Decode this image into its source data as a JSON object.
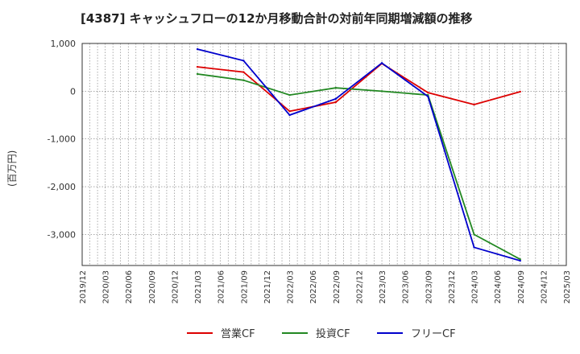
{
  "chart_data": {
    "type": "line",
    "title": "[4387]  キャッシュフローの12か月移動合計の対前年同期増減額の推移",
    "ylabel": "(百万円)",
    "xlabel": "",
    "ylim": [
      -3650,
      1000
    ],
    "yticks": [
      1000,
      0,
      -1000,
      -2000,
      -3000
    ],
    "ytick_labels": [
      "1,000",
      "0",
      "-1,000",
      "-2,000",
      "-3,000"
    ],
    "xrange": [
      "2019/12",
      "2025/03"
    ],
    "xtick_labels": [
      "2019/12",
      "2020/03",
      "2020/06",
      "2020/09",
      "2020/12",
      "2021/03",
      "2021/06",
      "2021/09",
      "2021/12",
      "2022/03",
      "2022/06",
      "2022/09",
      "2022/12",
      "2023/03",
      "2023/06",
      "2023/09",
      "2023/12",
      "2024/03",
      "2024/06",
      "2024/09",
      "2024/12",
      "2025/03"
    ],
    "grid": true,
    "legend_position": "bottom",
    "series": [
      {
        "name": "営業CF",
        "color": "#dd0000",
        "x": [
          "2021/03",
          "2021/09",
          "2022/03",
          "2022/09",
          "2023/03",
          "2023/09",
          "2024/03",
          "2024/09"
        ],
        "values": [
          510,
          400,
          -420,
          -230,
          580,
          -30,
          -280,
          -10
        ]
      },
      {
        "name": "投資CF",
        "color": "#228822",
        "x": [
          "2021/03",
          "2021/09",
          "2022/03",
          "2022/09",
          "2023/03",
          "2023/09",
          "2024/03",
          "2024/09"
        ],
        "values": [
          360,
          230,
          -80,
          70,
          0,
          -80,
          -3000,
          -3520
        ]
      },
      {
        "name": "フリーCF",
        "color": "#0000cc",
        "x": [
          "2021/03",
          "2021/09",
          "2022/03",
          "2022/09",
          "2023/03",
          "2023/09",
          "2024/03",
          "2024/09"
        ],
        "values": [
          880,
          640,
          -500,
          -160,
          590,
          -110,
          -3270,
          -3550
        ]
      }
    ]
  }
}
